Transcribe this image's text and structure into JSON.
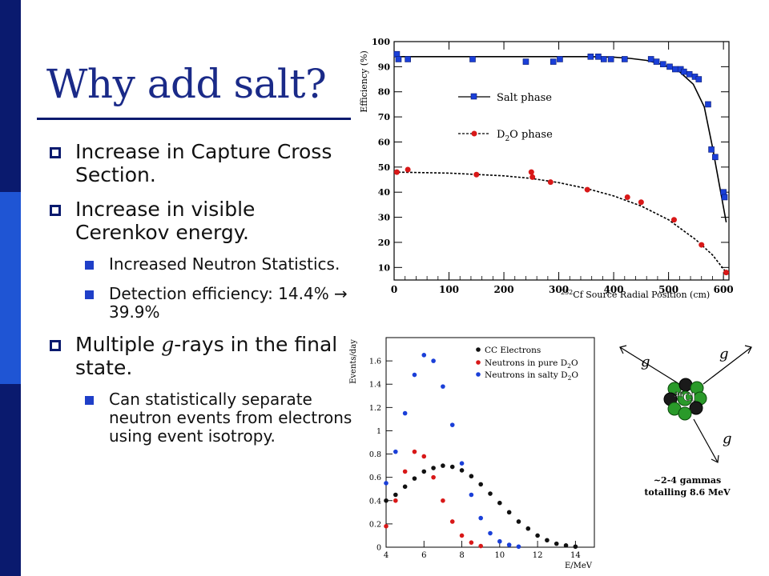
{
  "slide": {
    "title": "Why add salt?",
    "bullets": [
      {
        "level": 1,
        "text": "Increase in Capture Cross Section."
      },
      {
        "level": 1,
        "text": "Increase in visible Cerenkov energy."
      },
      {
        "level": 2,
        "text": "Increased Neutron Statistics."
      },
      {
        "level": 2,
        "text": "Detection efficiency: 14.4% → 39.9%"
      },
      {
        "level": 1,
        "text_before": "Multiple ",
        "symbol": "g",
        "text_after": "-rays in the final state."
      },
      {
        "level": 2,
        "text": "Can statistically separate neutron events from electrons using event isotropy."
      }
    ]
  },
  "colors": {
    "sidebar_dark": "#0a1a6e",
    "sidebar_light": "#1f55d4",
    "title": "#1a2a88",
    "salt": "#1a3fd8",
    "d2o": "#d81818",
    "cc": "#111111"
  },
  "chart_data": [
    {
      "type": "scatter",
      "ylabel": "Efficiency (%)",
      "xlabel": "252Cf Source Radial Position (cm)",
      "xlabel_sup": "252",
      "xlabel_main": "Cf Source Radial Position (cm)",
      "xlim": [
        0,
        610
      ],
      "ylim": [
        5,
        100
      ],
      "xticks": [
        0,
        100,
        200,
        300,
        400,
        500,
        600
      ],
      "yticks": [
        10,
        20,
        30,
        40,
        50,
        60,
        70,
        80,
        90,
        100
      ],
      "legend_position": "center",
      "series": [
        {
          "name": "Salt phase",
          "label_main": "Salt phase",
          "marker": "square",
          "line": "solid",
          "x": [
            5,
            8,
            25,
            143,
            240,
            290,
            302,
            358,
            372,
            382,
            395,
            420,
            468,
            478,
            490,
            502,
            512,
            522,
            528,
            538,
            548,
            555,
            572,
            578,
            585,
            600,
            602
          ],
          "y": [
            95,
            93,
            93,
            93,
            92,
            92,
            93,
            94,
            94,
            93,
            93,
            93,
            93,
            92,
            91,
            90,
            89,
            89,
            88,
            87,
            86,
            85,
            75,
            57,
            54,
            40,
            38
          ]
        },
        {
          "name": "D2O phase",
          "label_main": "D",
          "label_sub": "2",
          "label_tail": "O phase",
          "marker": "circle",
          "line": "dashed",
          "x": [
            5,
            25,
            150,
            250,
            252,
            285,
            352,
            425,
            450,
            510,
            560,
            605
          ],
          "y": [
            48,
            49,
            47,
            48,
            46,
            44,
            41,
            38,
            36,
            29,
            19,
            8
          ]
        }
      ],
      "fit_curves": [
        {
          "series": "Salt phase",
          "x": [
            0,
            100,
            200,
            300,
            350,
            400,
            430,
            460,
            490,
            520,
            545,
            565,
            580,
            595,
            605
          ],
          "y": [
            94,
            94,
            94,
            94,
            94,
            93.8,
            93.3,
            92.5,
            90.8,
            88,
            83,
            74,
            58,
            40,
            28
          ]
        },
        {
          "series": "D2O phase",
          "x": [
            0,
            100,
            200,
            250,
            300,
            350,
            400,
            450,
            500,
            550,
            580,
            605
          ],
          "y": [
            48,
            47.6,
            46.5,
            45.5,
            43.8,
            41.5,
            38.5,
            34.5,
            29,
            21,
            15,
            8
          ]
        }
      ]
    },
    {
      "type": "scatter",
      "ylabel": "Events/day",
      "xlabel": "E/MeV",
      "xlim": [
        4,
        15
      ],
      "ylim": [
        0,
        1.8
      ],
      "xticks": [
        4,
        6,
        8,
        10,
        12,
        14
      ],
      "yticks": [
        0,
        0.2,
        0.4,
        0.6,
        0.8,
        1,
        1.2,
        1.4,
        1.6
      ],
      "legend_position": "top-right",
      "series": [
        {
          "name": "CC Electrons",
          "label_main": "CC Electrons",
          "x": [
            4,
            4.5,
            5,
            5.5,
            6,
            6.5,
            7,
            7.5,
            8,
            8.5,
            9,
            9.5,
            10,
            10.5,
            11,
            11.5,
            12,
            12.5,
            13,
            13.5,
            14
          ],
          "y": [
            0.4,
            0.45,
            0.52,
            0.59,
            0.65,
            0.68,
            0.7,
            0.69,
            0.66,
            0.61,
            0.54,
            0.46,
            0.38,
            0.3,
            0.22,
            0.16,
            0.1,
            0.06,
            0.03,
            0.015,
            0.005
          ]
        },
        {
          "name": "Neutrons in pure D2O",
          "label_main": "Neutrons in pure D",
          "label_sub": "2",
          "label_tail": "O",
          "x": [
            4,
            4.5,
            5,
            5.5,
            6,
            6.5,
            7,
            7.5,
            8,
            8.5,
            9
          ],
          "y": [
            0.18,
            0.4,
            0.65,
            0.82,
            0.78,
            0.6,
            0.4,
            0.22,
            0.1,
            0.04,
            0.01
          ]
        },
        {
          "name": "Neutrons in salty D2O",
          "label_main": "Neutrons in salty D",
          "label_sub": "2",
          "label_tail": "O",
          "x": [
            4,
            4.5,
            5,
            5.5,
            6,
            6.5,
            7,
            7.5,
            8,
            8.5,
            9,
            9.5,
            10,
            10.5,
            11
          ],
          "y": [
            0.55,
            0.82,
            1.15,
            1.48,
            1.65,
            1.6,
            1.38,
            1.05,
            0.72,
            0.45,
            0.25,
            0.12,
            0.05,
            0.02,
            0.005
          ]
        }
      ]
    }
  ],
  "diagram": {
    "nucleus_label": "36Cl",
    "nucleus_sup": "36",
    "nucleus_main": "Cl",
    "gamma_symbol": "g",
    "caption_line1": "~2-4 gammas",
    "caption_line2": "totalling 8.6 MeV"
  }
}
